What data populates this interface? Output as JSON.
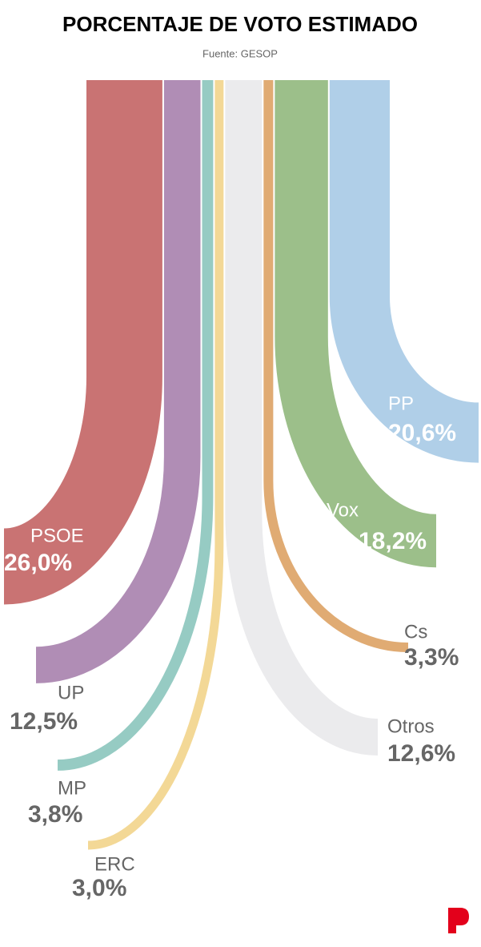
{
  "chart_data": {
    "type": "flow",
    "title": "PORCENTAJE DE VOTO ESTIMADO",
    "subtitle": "Fuente: GESOP",
    "categories": [
      "PSOE",
      "UP",
      "MP",
      "ERC",
      "Otros",
      "Cs",
      "Vox",
      "PP"
    ],
    "values": [
      26.0,
      12.5,
      3.8,
      3.0,
      12.6,
      3.3,
      18.2,
      20.6
    ],
    "value_labels": [
      "26,0%",
      "12,5%",
      "3,8%",
      "3,0%",
      "12,6%",
      "3,3%",
      "18,2%",
      "20,6%"
    ],
    "colors": [
      "#c97373",
      "#b08db5",
      "#96cbc3",
      "#f3d896",
      "#ebebed",
      "#e0ab73",
      "#9cbf8a",
      "#b0cfe8"
    ]
  }
}
